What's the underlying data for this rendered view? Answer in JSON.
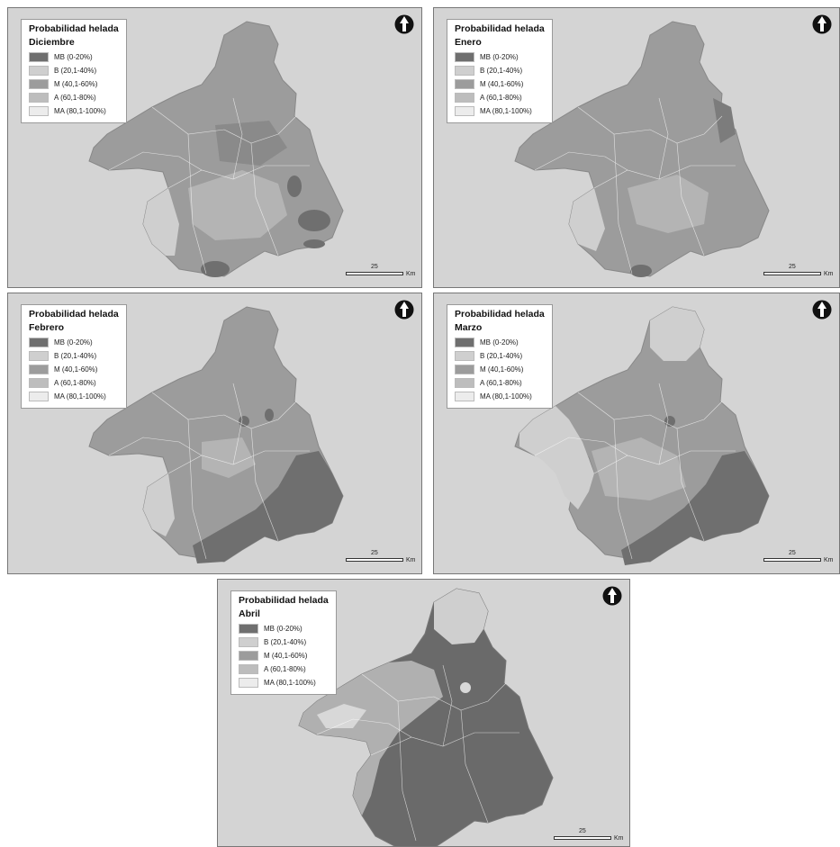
{
  "legend": {
    "title": "Probabilidad helada",
    "classes": [
      {
        "label": "MB (0-20%)",
        "color": "#6f6f6f"
      },
      {
        "label": "B (20,1-40%)",
        "color": "#cfcfcf"
      },
      {
        "label": "M (40,1-60%)",
        "color": "#9c9c9c"
      },
      {
        "label": "A (60,1-80%)",
        "color": "#bdbdbd"
      },
      {
        "label": "MA (80,1-100%)",
        "color": "#ececec"
      }
    ]
  },
  "scale": {
    "value": "25",
    "unit": "Km"
  },
  "panels": [
    {
      "month": "Diciembre",
      "base_class": "M"
    },
    {
      "month": "Enero",
      "base_class": "M"
    },
    {
      "month": "Febrero",
      "base_class": "M"
    },
    {
      "month": "Marzo",
      "base_class": "M"
    },
    {
      "month": "Abril",
      "base_class": "MB"
    }
  ],
  "icons": {
    "north_arrow": "north-arrow-icon"
  }
}
